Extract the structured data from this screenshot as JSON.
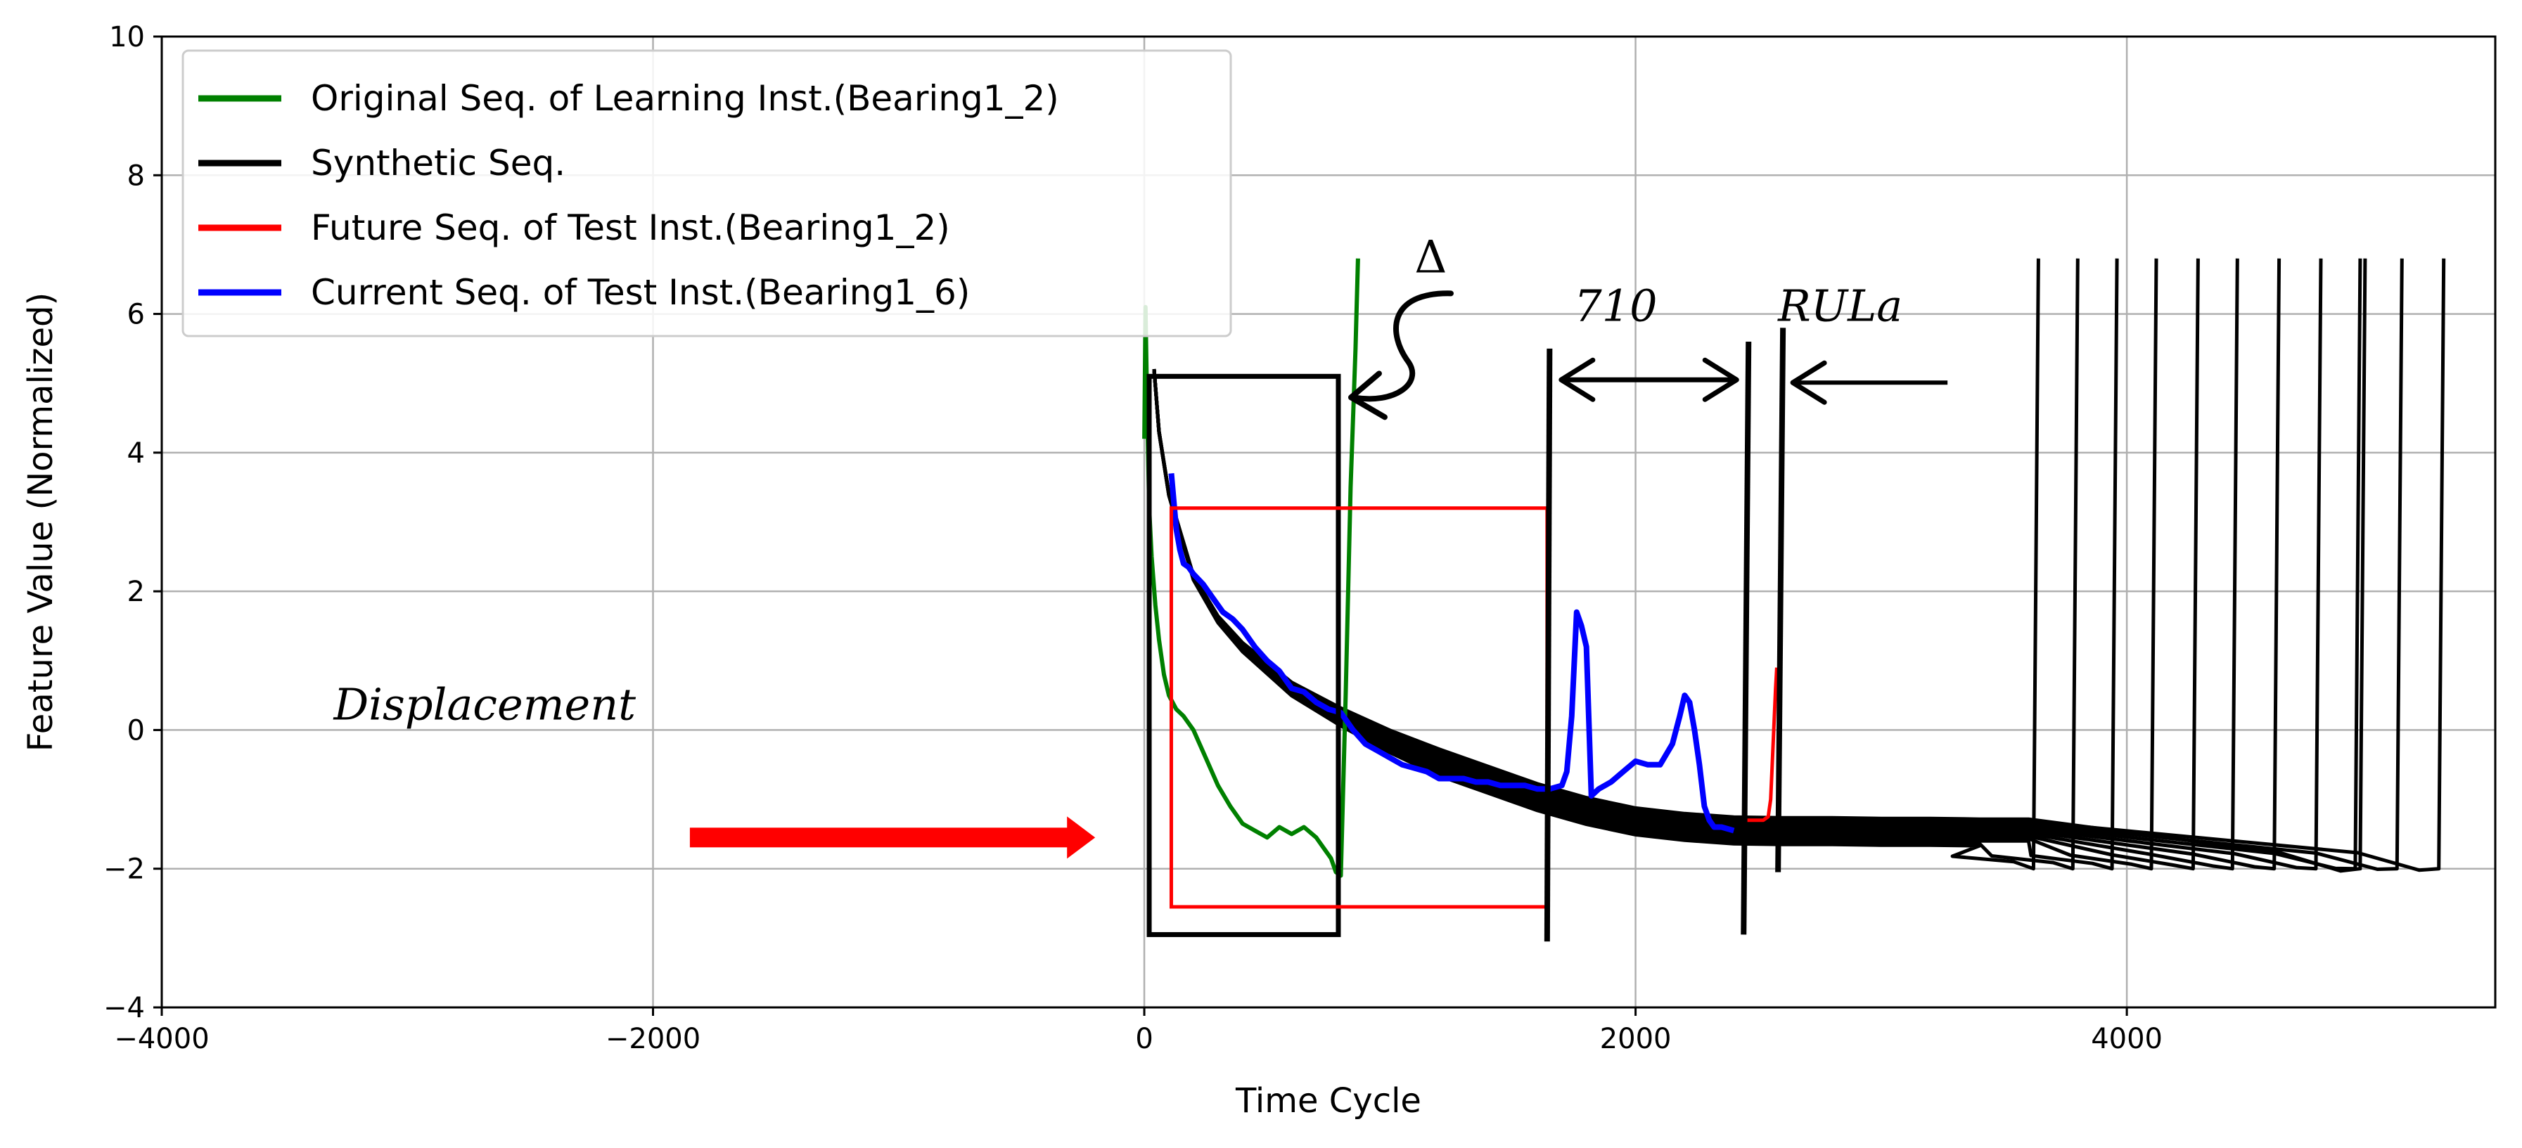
{
  "chart_data": {
    "type": "line",
    "title": "",
    "xlabel": "Time Cycle",
    "ylabel": "Feature Value (Normalized)",
    "xlim": [
      -4000,
      5500
    ],
    "ylim": [
      -4,
      10
    ],
    "grid": true,
    "legend_position": "top-left",
    "xticks": [
      -4000,
      -2000,
      0,
      2000,
      4000
    ],
    "xtick_labels": [
      "−4000",
      "−2000",
      "0",
      "2000",
      "4000"
    ],
    "yticks": [
      -4,
      -2,
      0,
      2,
      4,
      6,
      8,
      10
    ],
    "ytick_labels": [
      "−4",
      "−2",
      "0",
      "2",
      "4",
      "6",
      "8",
      "10"
    ],
    "legend": [
      {
        "label": "Original Seq. of Learning Inst.(Bearing1_2)",
        "color": "#008000"
      },
      {
        "label": "Synthetic Seq.",
        "color": "#000000"
      },
      {
        "label": "Future Seq. of Test Inst.(Bearing1_2)",
        "color": "#ff0000"
      },
      {
        "label": "Current Seq. of Test Inst.(Bearing1_6)",
        "color": "#0000ff"
      }
    ],
    "series": [
      {
        "name": "Original Seq. of Learning Inst.(Bearing1_2)",
        "color": "#008000",
        "x": [
          0,
          5,
          10,
          20,
          30,
          45,
          60,
          80,
          100,
          130,
          160,
          200,
          250,
          300,
          350,
          400,
          450,
          500,
          550,
          600,
          650,
          700,
          730,
          760,
          780,
          800,
          820,
          840,
          860,
          870
        ],
        "y": [
          4.2,
          6.1,
          5.0,
          3.2,
          2.5,
          1.8,
          1.3,
          0.8,
          0.5,
          0.3,
          0.2,
          0.0,
          -0.4,
          -0.8,
          -1.1,
          -1.35,
          -1.45,
          -1.55,
          -1.4,
          -1.5,
          -1.4,
          -1.55,
          -1.7,
          -1.85,
          -2.05,
          -2.1,
          0.5,
          3.5,
          5.5,
          6.8
        ]
      },
      {
        "name": "Synthetic Seq.",
        "color": "#000000",
        "count": 12,
        "x": [
          40,
          60,
          100,
          200,
          300,
          400,
          600,
          800,
          1000,
          1200,
          1400,
          1600,
          1800,
          2000,
          2200,
          2400,
          2600,
          2800,
          3000,
          3200,
          3400,
          3600
        ],
        "y": [
          5.2,
          4.3,
          3.4,
          2.2,
          1.6,
          1.2,
          0.6,
          0.2,
          -0.15,
          -0.45,
          -0.7,
          -0.95,
          -1.15,
          -1.3,
          -1.38,
          -1.43,
          -1.44,
          -1.44,
          -1.45,
          -1.45,
          -1.46,
          -1.46
        ],
        "end_times": [
          3640,
          3800,
          3960,
          4120,
          4290,
          4450,
          4620,
          4790,
          4950,
          5120,
          5290,
          4970
        ],
        "end_value": 6.8
      },
      {
        "name": "Future Seq. of Test Inst.(Bearing1_2)",
        "color": "#ff0000",
        "x": [
          2440,
          2480,
          2520,
          2540,
          2550,
          2560,
          2570,
          2575
        ],
        "y": [
          -1.3,
          -1.3,
          -1.3,
          -1.25,
          -1.0,
          -0.2,
          0.6,
          0.9
        ]
      },
      {
        "name": "Current Seq. of Test Inst.(Bearing1_6)",
        "color": "#0000ff",
        "x": [
          110,
          120,
          130,
          145,
          160,
          180,
          200,
          240,
          280,
          320,
          360,
          400,
          450,
          500,
          550,
          600,
          650,
          700,
          750,
          800,
          850,
          900,
          950,
          1000,
          1050,
          1100,
          1150,
          1200,
          1250,
          1300,
          1350,
          1400,
          1450,
          1500,
          1550,
          1600,
          1650,
          1700,
          1720,
          1740,
          1760,
          1780,
          1800,
          1820,
          1850,
          1900,
          1950,
          2000,
          2050,
          2100,
          2150,
          2180,
          2200,
          2220,
          2240,
          2260,
          2280,
          2300,
          2320,
          2350,
          2400
        ],
        "y": [
          3.7,
          3.3,
          2.9,
          2.6,
          2.4,
          2.35,
          2.25,
          2.1,
          1.9,
          1.7,
          1.6,
          1.45,
          1.2,
          1.0,
          0.85,
          0.6,
          0.55,
          0.4,
          0.3,
          0.25,
          0.0,
          -0.2,
          -0.3,
          -0.4,
          -0.5,
          -0.55,
          -0.6,
          -0.7,
          -0.7,
          -0.7,
          -0.75,
          -0.75,
          -0.8,
          -0.8,
          -0.8,
          -0.85,
          -0.85,
          -0.8,
          -0.6,
          0.2,
          1.7,
          1.5,
          1.2,
          -0.95,
          -0.85,
          -0.75,
          -0.6,
          -0.45,
          -0.5,
          -0.5,
          -0.2,
          0.2,
          0.5,
          0.4,
          0.0,
          -0.5,
          -1.1,
          -1.3,
          -1.4,
          -1.4,
          -1.45
        ]
      }
    ],
    "annotations": {
      "displacement_label": "Displacement",
      "displacement_arrow": {
        "x_start": -1850,
        "x_end": -200,
        "y": -1.55,
        "color": "#ff0000"
      },
      "delta_label": "Δ",
      "delta_position": {
        "x": 1100,
        "y": 6.6
      },
      "delta_box_black": {
        "x0": 20,
        "x1": 790,
        "y0": -2.95,
        "y1": 5.1
      },
      "delta_box_red": {
        "x0": 110,
        "x1": 1640,
        "y0": -2.55,
        "y1": 3.2
      },
      "rul_bracket_label": "710",
      "rul_bracket": {
        "x0": 1640,
        "x1": 2440,
        "y": 5.05
      },
      "rul_lines": [
        {
          "x0": 1650,
          "y0": 5.5,
          "x1": 1640,
          "y1": -3.05
        },
        {
          "x0": 2460,
          "y0": 5.6,
          "x1": 2440,
          "y1": -2.95
        },
        {
          "x0": 2600,
          "y0": 5.8,
          "x1": 2580,
          "y1": -2.05
        }
      ],
      "rula_label": "RULa",
      "rula_arrow": {
        "x_start": 3270,
        "x_end": 2640,
        "y": 5.05
      },
      "label_710_pos": {
        "x": 1750,
        "y": 5.9
      },
      "label_rula_pos": {
        "x": 2580,
        "y": 5.9
      },
      "displacement_pos": {
        "x": -3300,
        "y": 0.15
      }
    }
  }
}
